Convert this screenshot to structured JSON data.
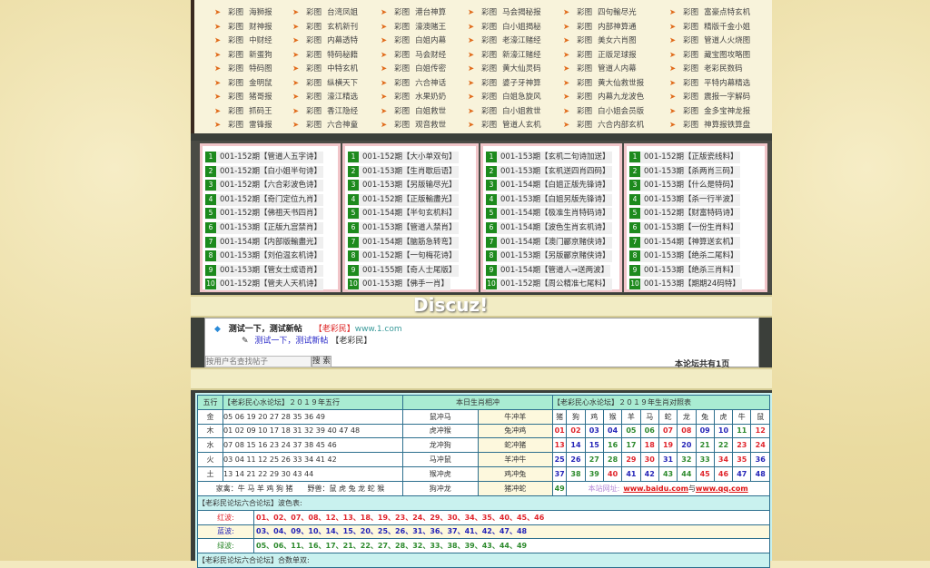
{
  "top_grid": {
    "prefix": "彩图",
    "columns": [
      [
        "海狮报",
        "财神报",
        "中财经",
        "新蛋狗",
        "特码图",
        "金明鼠",
        "猪哥报",
        "抓码王",
        "雷锋报"
      ],
      [
        "台湾凤姐",
        "玄机新刊",
        "内幕透特",
        "特码秘籍",
        "中特玄机",
        "纵横天下",
        "濠江精选",
        "香江隐经",
        "六合神童"
      ],
      [
        "港台神算",
        "濠澳赌王",
        "白姐内幕",
        "马会财经",
        "白姐传密",
        "六合神话",
        "水果奶奶",
        "白姐救世",
        "观音救世"
      ],
      [
        "马会揭秘报",
        "白小姐揭秘",
        "老濠江赌经",
        "新濠江赌经",
        "黄大仙灵码",
        "婆子牙神算",
        "白姐急旋风",
        "白小姐救世",
        "管道人玄机"
      ],
      [
        "四句輸尽光",
        "内部神算通",
        "美女六肖图",
        "正版足球报",
        "管道人内幕",
        "黄大仙救世报",
        "内幕九龙波色",
        "白小姐会员版",
        "六合内部玄机"
      ],
      [
        "富豪点特玄机",
        "精版千金小姐",
        "管道人火烧图",
        "藏宝图攻略图",
        "老彩民数码",
        "平特内幕精选",
        "震报一字解码",
        "金多宝神龙报",
        "神算报铁算盘"
      ]
    ]
  },
  "lists": [
    [
      "001-152期【管道人五字诗】",
      "001-152期【白小姐半句诗】",
      "001-152期【六合彩波色诗】",
      "001-152期【奇门定位九肖】",
      "001-152期【佛祖天书四肖】",
      "001-153期【正版九宫禁肖】",
      "001-154期【内部版輸盡光】",
      "001-153期【刘伯温玄机诗】",
      "001-153期【管女士成语肖】",
      "001-152期【管夫人天机诗】"
    ],
    [
      "001-152期【大小单双句】",
      "001-153期【生肖歇后语】",
      "001-153期【另版输尽光】",
      "001-152期【正版輸盡光】",
      "001-154期【半句玄机料】",
      "001-153期【管道人禁肖】",
      "001-154期【脑筋急转弯】",
      "001-152期【一句梅花诗】",
      "001-155期【奇人士尾版】",
      "001-153期【佛手一肖】"
    ],
    [
      "001-153期【玄机二句诗加送】",
      "001-153期【玄机送四肖四码】",
      "001-154期【白姐正版先锋诗】",
      "001-153期【白姐另版先锋诗】",
      "001-154期【极准生肖特码诗】",
      "001-154期【波色生肖玄机诗】",
      "001-154期【澳门酈京赌侠诗】",
      "001-153期【另版酈京赌侠诗】",
      "001-154期【管道人→送两波】",
      "001-152期【周公精准七尾料】"
    ],
    [
      "001-152期【正版瓷线料】",
      "001-153期【杀两肖三码】",
      "001-153期【什么是特码】",
      "001-153期【杀一行半波】",
      "001-152期【财富特码诗】",
      "001-153期【一份生肖料】",
      "001-154期【神算送玄机】",
      "001-153期【绝杀二尾料】",
      "001-153期【绝杀三肖料】",
      "001-153期【期期24码特】"
    ]
  ],
  "watermark": "Discuz!",
  "forum": {
    "thread_title": "测试一下，测试新帖",
    "thread_tag": "【老彩民】",
    "thread_url": "www.1.com",
    "reply_title": "测试一下，测试新帖",
    "reply_author": "【老彩民】",
    "search_placeholder": "按用户名查找帖子",
    "search_button": "搜 索",
    "page_info": "本论坛共有1页"
  },
  "wuxing": {
    "header_col": "五行",
    "header_title": "【老彩民心水论坛】２０１９年五行",
    "header_clash": "本日生肖相冲",
    "rows": [
      {
        "el": "金",
        "nums": "05 06 19 20 27 28 35 36 49",
        "c1": "鼠冲马",
        "c2": "牛冲羊"
      },
      {
        "el": "木",
        "nums": "01 02 09 10 17 18 31 32 39 40 47 48",
        "c1": "虎冲猴",
        "c2": "兔冲鸡"
      },
      {
        "el": "水",
        "nums": "07 08 15 16 23 24 37 38 45 46",
        "c1": "龙冲狗",
        "c2": "蛇冲猪"
      },
      {
        "el": "火",
        "nums": "03 04 11 12 25 26 33 34 41 42",
        "c1": "马冲鼠",
        "c2": "羊冲牛"
      },
      {
        "el": "土",
        "nums": "13 14 21 22 29 30 43 44",
        "c1": "猴冲虎",
        "c2": "鸡冲兔"
      }
    ],
    "footer": "家禽：牛 马 羊 鸡 狗 猪　　野兽：鼠 虎 兔 龙 蛇 猴",
    "footer_c1": "狗冲龙",
    "footer_c2": "猪冲蛇"
  },
  "zodiac": {
    "title": "【老彩民心水论坛】２０１９年生肖对照表",
    "animals": [
      "猪",
      "狗",
      "鸡",
      "猴",
      "羊",
      "马",
      "蛇",
      "龙",
      "兔",
      "虎",
      "牛",
      "鼠"
    ],
    "rows": [
      [
        "01",
        "02",
        "03",
        "04",
        "05",
        "06",
        "07",
        "08",
        "09",
        "10",
        "11",
        "12"
      ],
      [
        "13",
        "14",
        "15",
        "16",
        "17",
        "18",
        "19",
        "20",
        "21",
        "22",
        "23",
        "24"
      ],
      [
        "25",
        "26",
        "27",
        "28",
        "29",
        "30",
        "31",
        "32",
        "33",
        "34",
        "35",
        "36"
      ],
      [
        "37",
        "38",
        "39",
        "40",
        "41",
        "42",
        "43",
        "44",
        "45",
        "46",
        "47",
        "48"
      ]
    ],
    "last": "49",
    "site_label": "本站网址:",
    "link1": "www.baidu.com",
    "link_sep": "与",
    "link2": "www.qq.com"
  },
  "waves": {
    "title": "【老彩民论坛六合论坛】波色表:",
    "red": {
      "label": "红波:",
      "nums": "01、02、07、08、12、13、18、19、23、24、29、30、34、35、40、45、46"
    },
    "blue": {
      "label": "蓝波:",
      "nums": "03、04、09、10、14、15、20、25、26、31、36、37、41、42、47、48"
    },
    "green": {
      "label": "绿波:",
      "nums": "05、06、11、16、17、21、22、27、28、32、33、38、39、43、44、49"
    },
    "next_title": "【老彩民论坛六合论坛】合数单双:"
  },
  "colors": {
    "red": "#e0262d",
    "blue": "#2525b8",
    "green": "#2d8a2d",
    "list_badge": "#1d8a1d",
    "table_bg": "#c9f1ef"
  }
}
